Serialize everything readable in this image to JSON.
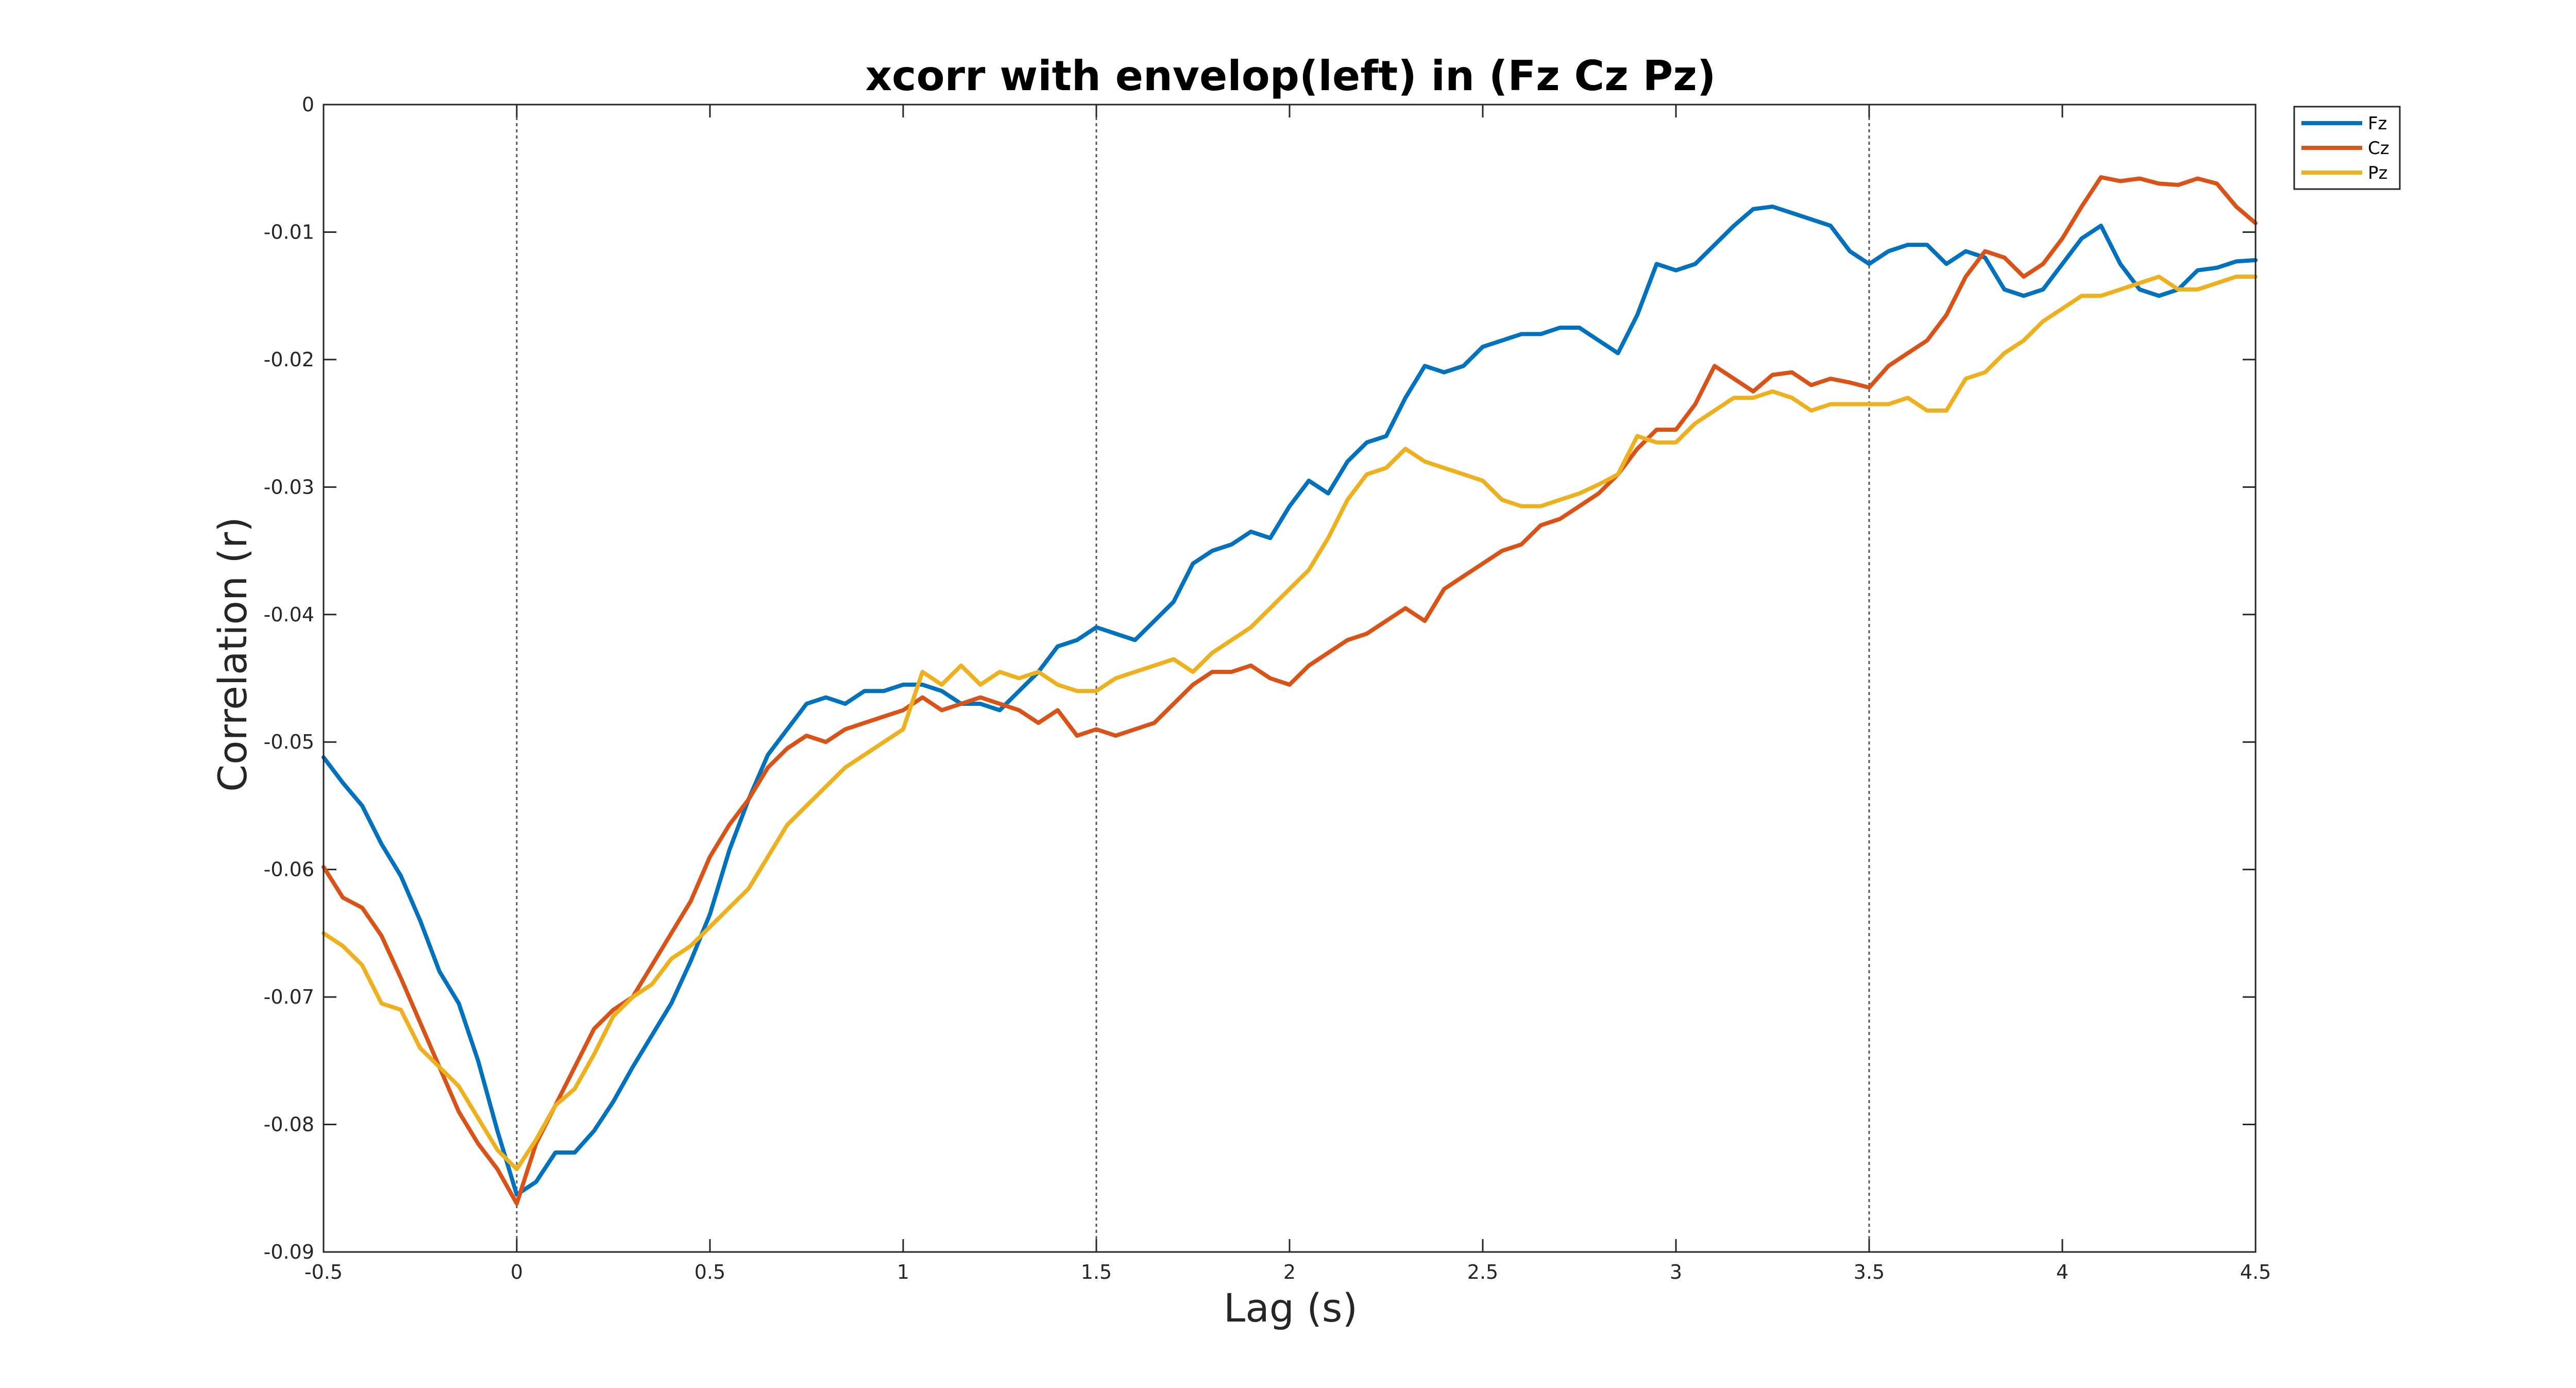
{
  "chart_data": {
    "type": "line",
    "title": "xcorr with envelop(left) in (Fz Cz Pz)",
    "xlabel": "Lag (s)",
    "ylabel": "Correlation (r)",
    "xlim": [
      -0.5,
      4.5
    ],
    "ylim": [
      -0.09,
      0
    ],
    "xticks": [
      -0.5,
      0,
      0.5,
      1,
      1.5,
      2,
      2.5,
      3,
      3.5,
      4,
      4.5
    ],
    "xtick_labels": [
      "-0.5",
      "0",
      "0.5",
      "1",
      "1.5",
      "2",
      "2.5",
      "3",
      "3.5",
      "4",
      "4.5"
    ],
    "yticks": [
      0,
      -0.01,
      -0.02,
      -0.03,
      -0.04,
      -0.05,
      -0.06,
      -0.07,
      -0.08,
      -0.09
    ],
    "ytick_labels": [
      "0",
      "-0.01",
      "-0.02",
      "-0.03",
      "-0.04",
      "-0.05",
      "-0.06",
      "-0.07",
      "-0.08",
      "-0.09"
    ],
    "vlines": [
      0,
      1.5,
      3.5
    ],
    "grid": false,
    "legend_position": "top-right outside",
    "series": [
      {
        "name": "Fz",
        "color": "#0072BD",
        "x": [
          -0.5,
          -0.45,
          -0.4,
          -0.35,
          -0.3,
          -0.25,
          -0.2,
          -0.15,
          -0.1,
          -0.05,
          0,
          0.05,
          0.1,
          0.15,
          0.2,
          0.25,
          0.3,
          0.35,
          0.4,
          0.45,
          0.5,
          0.55,
          0.6,
          0.65,
          0.7,
          0.75,
          0.8,
          0.85,
          0.9,
          0.95,
          1.0,
          1.05,
          1.1,
          1.15,
          1.2,
          1.25,
          1.3,
          1.35,
          1.4,
          1.45,
          1.5,
          1.55,
          1.6,
          1.65,
          1.7,
          1.75,
          1.8,
          1.85,
          1.9,
          1.95,
          2.0,
          2.05,
          2.1,
          2.15,
          2.2,
          2.25,
          2.3,
          2.35,
          2.4,
          2.45,
          2.5,
          2.55,
          2.6,
          2.65,
          2.7,
          2.75,
          2.8,
          2.85,
          2.9,
          2.95,
          3.0,
          3.05,
          3.1,
          3.15,
          3.2,
          3.25,
          3.3,
          3.35,
          3.4,
          3.45,
          3.5,
          3.55,
          3.6,
          3.65,
          3.7,
          3.75,
          3.8,
          3.85,
          3.9,
          3.95,
          4.0,
          4.05,
          4.1,
          4.15,
          4.2,
          4.25,
          4.3,
          4.35,
          4.4,
          4.45,
          4.5
        ],
        "y": [
          -0.0512,
          -0.0532,
          -0.055,
          -0.058,
          -0.0605,
          -0.064,
          -0.068,
          -0.0705,
          -0.075,
          -0.0805,
          -0.0855,
          -0.0845,
          -0.0822,
          -0.0822,
          -0.0805,
          -0.0782,
          -0.0755,
          -0.073,
          -0.0705,
          -0.0672,
          -0.0635,
          -0.0585,
          -0.0545,
          -0.051,
          -0.049,
          -0.047,
          -0.0465,
          -0.047,
          -0.046,
          -0.046,
          -0.0455,
          -0.0455,
          -0.046,
          -0.047,
          -0.047,
          -0.0475,
          -0.046,
          -0.0445,
          -0.0425,
          -0.042,
          -0.041,
          -0.0415,
          -0.042,
          -0.0405,
          -0.039,
          -0.036,
          -0.035,
          -0.0345,
          -0.0335,
          -0.034,
          -0.0315,
          -0.0295,
          -0.0305,
          -0.028,
          -0.0265,
          -0.026,
          -0.023,
          -0.0205,
          -0.021,
          -0.0205,
          -0.019,
          -0.0185,
          -0.018,
          -0.018,
          -0.0175,
          -0.0175,
          -0.0185,
          -0.0195,
          -0.0165,
          -0.0125,
          -0.013,
          -0.0125,
          -0.011,
          -0.0095,
          -0.0082,
          -0.008,
          -0.0085,
          -0.009,
          -0.0095,
          -0.0115,
          -0.0125,
          -0.0115,
          -0.011,
          -0.011,
          -0.0125,
          -0.0115,
          -0.012,
          -0.0145,
          -0.015,
          -0.0145,
          -0.0125,
          -0.0105,
          -0.0095,
          -0.0125,
          -0.0145,
          -0.015,
          -0.0145,
          -0.013,
          -0.0128,
          -0.0123,
          -0.0122
        ]
      },
      {
        "name": "Cz",
        "color": "#D95319",
        "x": [
          -0.5,
          -0.45,
          -0.4,
          -0.35,
          -0.3,
          -0.25,
          -0.2,
          -0.15,
          -0.1,
          -0.05,
          0,
          0.05,
          0.1,
          0.15,
          0.2,
          0.25,
          0.3,
          0.35,
          0.4,
          0.45,
          0.5,
          0.55,
          0.6,
          0.65,
          0.7,
          0.75,
          0.8,
          0.85,
          0.9,
          0.95,
          1.0,
          1.05,
          1.1,
          1.15,
          1.2,
          1.25,
          1.3,
          1.35,
          1.4,
          1.45,
          1.5,
          1.55,
          1.6,
          1.65,
          1.7,
          1.75,
          1.8,
          1.85,
          1.9,
          1.95,
          2.0,
          2.05,
          2.1,
          2.15,
          2.2,
          2.25,
          2.3,
          2.35,
          2.4,
          2.45,
          2.5,
          2.55,
          2.6,
          2.65,
          2.7,
          2.75,
          2.8,
          2.85,
          2.9,
          2.95,
          3.0,
          3.05,
          3.1,
          3.15,
          3.2,
          3.25,
          3.3,
          3.35,
          3.4,
          3.45,
          3.5,
          3.55,
          3.6,
          3.65,
          3.7,
          3.75,
          3.8,
          3.85,
          3.9,
          3.95,
          4.0,
          4.05,
          4.1,
          4.15,
          4.2,
          4.25,
          4.3,
          4.35,
          4.4,
          4.45,
          4.5
        ],
        "y": [
          -0.0598,
          -0.0622,
          -0.063,
          -0.0652,
          -0.0685,
          -0.072,
          -0.0755,
          -0.079,
          -0.0815,
          -0.0835,
          -0.0862,
          -0.0815,
          -0.0785,
          -0.0755,
          -0.0725,
          -0.071,
          -0.07,
          -0.0675,
          -0.065,
          -0.0625,
          -0.059,
          -0.0565,
          -0.0545,
          -0.052,
          -0.0505,
          -0.0495,
          -0.05,
          -0.049,
          -0.0485,
          -0.048,
          -0.0475,
          -0.0465,
          -0.0475,
          -0.047,
          -0.0465,
          -0.047,
          -0.0475,
          -0.0485,
          -0.0475,
          -0.0495,
          -0.049,
          -0.0495,
          -0.049,
          -0.0485,
          -0.047,
          -0.0455,
          -0.0445,
          -0.0445,
          -0.044,
          -0.045,
          -0.0455,
          -0.044,
          -0.043,
          -0.042,
          -0.0415,
          -0.0405,
          -0.0395,
          -0.0405,
          -0.038,
          -0.037,
          -0.036,
          -0.035,
          -0.0345,
          -0.033,
          -0.0325,
          -0.0315,
          -0.0305,
          -0.029,
          -0.027,
          -0.0255,
          -0.0255,
          -0.0235,
          -0.0205,
          -0.0215,
          -0.0225,
          -0.0212,
          -0.021,
          -0.022,
          -0.0215,
          -0.0218,
          -0.0222,
          -0.0205,
          -0.0195,
          -0.0185,
          -0.0165,
          -0.0135,
          -0.0115,
          -0.012,
          -0.0135,
          -0.0125,
          -0.0105,
          -0.008,
          -0.0057,
          -0.006,
          -0.0058,
          -0.0062,
          -0.0063,
          -0.0058,
          -0.0062,
          -0.008,
          -0.0093
        ]
      },
      {
        "name": "Pz",
        "color": "#EDB120",
        "x": [
          -0.5,
          -0.45,
          -0.4,
          -0.35,
          -0.3,
          -0.25,
          -0.2,
          -0.15,
          -0.1,
          -0.05,
          0,
          0.05,
          0.1,
          0.15,
          0.2,
          0.25,
          0.3,
          0.35,
          0.4,
          0.45,
          0.5,
          0.55,
          0.6,
          0.65,
          0.7,
          0.75,
          0.8,
          0.85,
          0.9,
          0.95,
          1.0,
          1.05,
          1.1,
          1.15,
          1.2,
          1.25,
          1.3,
          1.35,
          1.4,
          1.45,
          1.5,
          1.55,
          1.6,
          1.65,
          1.7,
          1.75,
          1.8,
          1.85,
          1.9,
          1.95,
          2.0,
          2.05,
          2.1,
          2.15,
          2.2,
          2.25,
          2.3,
          2.35,
          2.4,
          2.45,
          2.5,
          2.55,
          2.6,
          2.65,
          2.7,
          2.75,
          2.8,
          2.85,
          2.9,
          2.95,
          3.0,
          3.05,
          3.1,
          3.15,
          3.2,
          3.25,
          3.3,
          3.35,
          3.4,
          3.45,
          3.5,
          3.55,
          3.6,
          3.65,
          3.7,
          3.75,
          3.8,
          3.85,
          3.9,
          3.95,
          4.0,
          4.05,
          4.1,
          4.15,
          4.2,
          4.25,
          4.3,
          4.35,
          4.4,
          4.45,
          4.5
        ],
        "y": [
          -0.065,
          -0.066,
          -0.0675,
          -0.0705,
          -0.071,
          -0.074,
          -0.0755,
          -0.077,
          -0.0795,
          -0.082,
          -0.0835,
          -0.0812,
          -0.0785,
          -0.0772,
          -0.0745,
          -0.0715,
          -0.07,
          -0.069,
          -0.067,
          -0.066,
          -0.0645,
          -0.063,
          -0.0615,
          -0.059,
          -0.0565,
          -0.055,
          -0.0535,
          -0.052,
          -0.051,
          -0.05,
          -0.049,
          -0.0445,
          -0.0455,
          -0.044,
          -0.0455,
          -0.0445,
          -0.045,
          -0.0445,
          -0.0455,
          -0.046,
          -0.046,
          -0.045,
          -0.0445,
          -0.044,
          -0.0435,
          -0.0445,
          -0.043,
          -0.042,
          -0.041,
          -0.0395,
          -0.038,
          -0.0365,
          -0.034,
          -0.031,
          -0.029,
          -0.0285,
          -0.027,
          -0.028,
          -0.0285,
          -0.029,
          -0.0295,
          -0.031,
          -0.0315,
          -0.0315,
          -0.031,
          -0.0305,
          -0.0298,
          -0.029,
          -0.026,
          -0.0265,
          -0.0265,
          -0.025,
          -0.024,
          -0.023,
          -0.023,
          -0.0225,
          -0.023,
          -0.024,
          -0.0235,
          -0.0235,
          -0.0235,
          -0.0235,
          -0.023,
          -0.024,
          -0.024,
          -0.0215,
          -0.021,
          -0.0195,
          -0.0185,
          -0.017,
          -0.016,
          -0.015,
          -0.015,
          -0.0145,
          -0.014,
          -0.0135,
          -0.0145,
          -0.0145,
          -0.014,
          -0.0135,
          -0.0135
        ]
      }
    ]
  }
}
